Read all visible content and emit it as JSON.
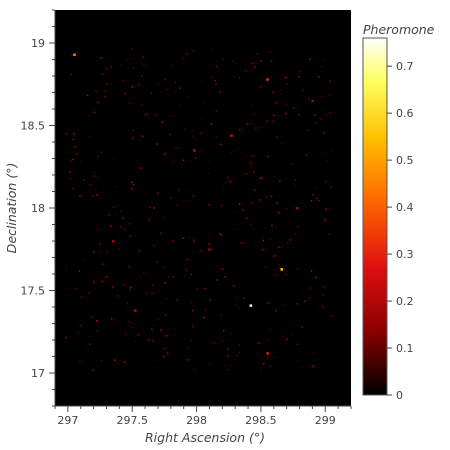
{
  "chart_data": {
    "type": "heatmap",
    "xlabel": "Right Ascension (°)",
    "ylabel": "Declination (°)",
    "xlim": [
      296.9,
      299.2
    ],
    "ylim": [
      16.8,
      19.2
    ],
    "x_ticks": [
      297,
      297.5,
      298,
      298.5,
      299
    ],
    "x_tick_labels": [
      "297",
      "297.5",
      "298",
      "298.5",
      "299"
    ],
    "y_ticks": [
      17,
      17.5,
      18,
      18.5,
      19
    ],
    "y_tick_labels": [
      "17",
      "17.5",
      "18",
      "18.5",
      "19"
    ],
    "colorbar": {
      "title": "Pheromone",
      "range": [
        0,
        0.76
      ],
      "ticks": [
        0,
        0.1,
        0.2,
        0.3,
        0.4,
        0.5,
        0.6,
        0.7
      ],
      "tick_labels": [
        "0",
        "0.1",
        "0.2",
        "0.3",
        "0.4",
        "0.5",
        "0.6",
        "0.7"
      ],
      "colormap": [
        "#000000",
        "#8b0000",
        "#e01010",
        "#ff6a00",
        "#ffc000",
        "#ffff60",
        "#ffffff"
      ]
    },
    "background_color": "#000000",
    "data_extent": {
      "ra": [
        296.97,
        299.05
      ],
      "dec": [
        17.02,
        18.98
      ]
    },
    "hotspots": [
      {
        "ra": 298.42,
        "dec": 17.41,
        "value": 0.72
      },
      {
        "ra": 298.66,
        "dec": 17.63,
        "value": 0.55
      },
      {
        "ra": 297.05,
        "dec": 18.93,
        "value": 0.45
      },
      {
        "ra": 298.55,
        "dec": 18.78,
        "value": 0.32
      },
      {
        "ra": 298.55,
        "dec": 17.12,
        "value": 0.3
      },
      {
        "ra": 298.27,
        "dec": 18.44,
        "value": 0.25
      },
      {
        "ra": 297.98,
        "dec": 18.35,
        "value": 0.22
      },
      {
        "ra": 297.52,
        "dec": 17.38,
        "value": 0.2
      },
      {
        "ra": 298.78,
        "dec": 18.0,
        "value": 0.2
      },
      {
        "ra": 297.35,
        "dec": 17.8,
        "value": 0.18
      },
      {
        "ra": 298.1,
        "dec": 17.75,
        "value": 0.18
      },
      {
        "ra": 298.9,
        "dec": 18.65,
        "value": 0.17
      }
    ]
  }
}
